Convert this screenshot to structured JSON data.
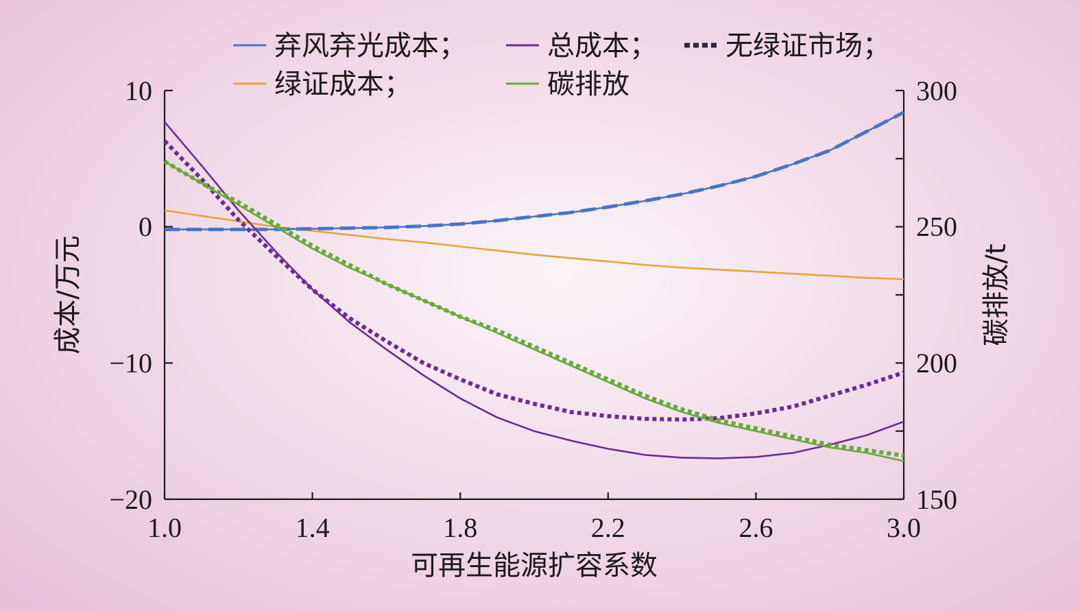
{
  "chart_data": {
    "type": "line",
    "xlabel": "可再生能源扩容系数",
    "ylabel_left": "成本/万元",
    "ylabel_right": "碳排放/t",
    "xlim": [
      1.0,
      3.0
    ],
    "ylim_left": [
      -20,
      10
    ],
    "ylim_right": [
      150,
      300
    ],
    "x_ticks": [
      "1.0",
      "1.4",
      "1.8",
      "2.2",
      "2.6",
      "3.0"
    ],
    "y_left_ticks": [
      "10",
      "0",
      "−10",
      "−20"
    ],
    "y_right_ticks": [
      "300",
      "250",
      "200",
      "150"
    ],
    "legend_placement": "top",
    "legend": [
      {
        "label": "弃风弃光成本；",
        "color": "#4a74c4",
        "style": "solid"
      },
      {
        "label": "总成本；",
        "color": "#6b2c91",
        "style": "solid"
      },
      {
        "label": "无绿证市场；",
        "color": "#2a2a3a",
        "style": "dotted"
      },
      {
        "label": "绿证成本；",
        "color": "#e9a23b",
        "style": "solid"
      },
      {
        "label": "碳排放",
        "color": "#6aaa3a",
        "style": "solid"
      }
    ],
    "x": [
      1.0,
      1.1,
      1.2,
      1.3,
      1.4,
      1.5,
      1.6,
      1.7,
      1.8,
      1.9,
      2.0,
      2.1,
      2.2,
      2.3,
      2.4,
      2.5,
      2.6,
      2.7,
      2.8,
      2.9,
      3.0
    ],
    "series": [
      {
        "name": "弃风弃光成本；",
        "axis": "left",
        "color": "#4a74c4",
        "style": "solid",
        "values": [
          -0.2,
          -0.2,
          -0.2,
          -0.2,
          -0.15,
          -0.1,
          -0.05,
          0.05,
          0.2,
          0.45,
          0.75,
          1.05,
          1.45,
          1.9,
          2.4,
          3.0,
          3.7,
          4.6,
          5.6,
          7.0,
          8.4
        ]
      },
      {
        "name": "无绿证市场；",
        "axis": "left",
        "color": "#4a74c4",
        "style": "dashed",
        "values": [
          -0.2,
          -0.2,
          -0.2,
          -0.2,
          -0.15,
          -0.1,
          -0.05,
          0.05,
          0.2,
          0.45,
          0.75,
          1.05,
          1.45,
          1.9,
          2.4,
          3.0,
          3.7,
          4.6,
          5.6,
          7.0,
          8.4
        ]
      },
      {
        "name": "绿证成本；",
        "axis": "left",
        "color": "#e9a23b",
        "style": "solid",
        "values": [
          1.2,
          0.8,
          0.4,
          0.0,
          -0.3,
          -0.6,
          -0.9,
          -1.15,
          -1.45,
          -1.75,
          -2.05,
          -2.3,
          -2.55,
          -2.8,
          -3.0,
          -3.15,
          -3.3,
          -3.45,
          -3.6,
          -3.75,
          -3.85
        ]
      },
      {
        "name": "总成本；",
        "axis": "left",
        "color": "#6b2c91",
        "style": "solid",
        "values": [
          7.7,
          4.5,
          1.2,
          -1.8,
          -4.6,
          -7.0,
          -9.0,
          -10.9,
          -12.6,
          -14.0,
          -15.0,
          -15.7,
          -16.3,
          -16.75,
          -16.95,
          -17.0,
          -16.9,
          -16.6,
          -16.0,
          -15.3,
          -14.3
        ]
      },
      {
        "name": "总成本 无绿证市场；",
        "axis": "left",
        "color": "#6b2c91",
        "style": "dotted",
        "values": [
          6.3,
          3.5,
          0.5,
          -2.1,
          -4.6,
          -6.7,
          -8.4,
          -10.0,
          -11.2,
          -12.3,
          -13.0,
          -13.6,
          -13.9,
          -14.1,
          -14.15,
          -14.05,
          -13.7,
          -13.2,
          -12.4,
          -11.6,
          -10.7
        ]
      },
      {
        "name": "碳排放",
        "axis": "right",
        "color": "#6aaa3a",
        "style": "solid",
        "values": [
          274,
          266,
          258,
          250,
          242,
          235,
          229,
          223,
          217,
          211,
          205,
          199,
          193,
          187,
          182,
          178,
          175,
          172,
          169,
          167,
          164
        ]
      },
      {
        "name": "碳排放 无绿证市场",
        "axis": "right",
        "color": "#6aaa3a",
        "style": "dotted",
        "values": [
          274,
          266,
          259,
          251,
          243,
          236,
          229,
          223,
          217,
          212,
          206,
          200,
          194,
          188,
          183,
          179,
          176,
          173,
          170,
          168,
          166
        ]
      }
    ]
  }
}
